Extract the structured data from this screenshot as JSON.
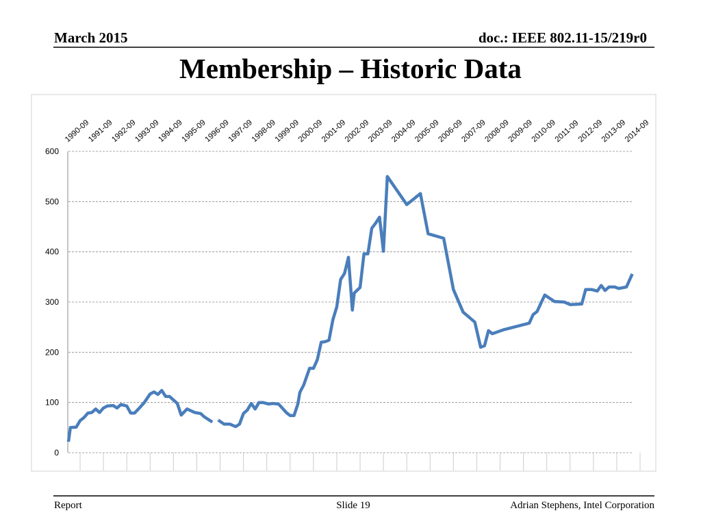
{
  "header": {
    "date": "March 2015",
    "doc": "doc.: IEEE 802.11-15/219r0"
  },
  "footer": {
    "left": "Report",
    "center": "Slide 19",
    "right": "Adrian Stephens, Intel Corporation"
  },
  "chart_data": {
    "type": "line",
    "title": "Membership – Historic Data",
    "x": [
      "1990-03",
      "1990-04",
      "1990-07",
      "1990-09",
      "1990-11",
      "1991-01",
      "1991-03",
      "1991-05",
      "1991-07",
      "1991-09",
      "1991-11",
      "1992-02",
      "1992-04",
      "1992-06",
      "1992-09",
      "1992-11",
      "1993-01",
      "1993-03",
      "1993-06",
      "1993-09",
      "1993-11",
      "1994-01",
      "1994-03",
      "1994-05",
      "1994-07",
      "1994-11",
      "1995-01",
      "1995-04",
      "1995-08",
      "1995-11",
      "1996-01",
      "1996-05",
      "1996-06",
      "1996-08",
      "1996-11",
      "1997-02",
      "1997-05",
      "1997-07",
      "1997-09",
      "1997-11",
      "1998-01",
      "1998-03",
      "1998-05",
      "1998-07",
      "1998-10",
      "1998-12",
      "1999-03",
      "1999-04",
      "1999-07",
      "1999-09",
      "1999-11",
      "2000-01",
      "2000-02",
      "2000-04",
      "2000-07",
      "2000-09",
      "2000-11",
      "2001-01",
      "2001-03",
      "2001-05",
      "2001-07",
      "2001-09",
      "2001-11",
      "2002-01",
      "2002-03",
      "2002-05",
      "2002-06",
      "2002-09",
      "2002-11",
      "2003-01",
      "2003-03",
      "2003-05",
      "2003-07",
      "2003-09",
      "2003-11",
      "2004-09",
      "2005-04",
      "2005-08",
      "2006-04",
      "2006-09",
      "2007-02",
      "2007-08",
      "2007-11",
      "2008-01",
      "2008-03",
      "2008-05",
      "2008-11",
      "2009-12",
      "2010-02",
      "2010-04",
      "2010-08",
      "2011-01",
      "2011-06",
      "2011-09",
      "2012-03",
      "2012-05",
      "2012-08",
      "2012-11",
      "2013-01",
      "2013-03",
      "2013-05",
      "2013-08",
      "2013-10",
      "2014-02",
      "2014-05"
    ],
    "series": [
      {
        "name": "Membership",
        "color": "#4a7ebb",
        "values": [
          22,
          50,
          51,
          64,
          70,
          79,
          80,
          87,
          80,
          89,
          93,
          94,
          89,
          96,
          93,
          79,
          79,
          87,
          100,
          117,
          121,
          116,
          124,
          112,
          112,
          98,
          75,
          87,
          80,
          78,
          71,
          61,
          null,
          65,
          57,
          57,
          52,
          57,
          78,
          85,
          98,
          87,
          100,
          100,
          97,
          98,
          97,
          93,
          80,
          74,
          74,
          97,
          120,
          135,
          168,
          168,
          185,
          220,
          221,
          224,
          265,
          290,
          345,
          357,
          389,
          284,
          318,
          329,
          396,
          396,
          447,
          457,
          469,
          401,
          550,
          494,
          516,
          436,
          427,
          325,
          280,
          260,
          210,
          213,
          243,
          237,
          245,
          258,
          275,
          281,
          314,
          301,
          300,
          295,
          296,
          325,
          325,
          322,
          333,
          323,
          330,
          330,
          327,
          330,
          356
        ]
      }
    ],
    "xlim": [
      "1990-03",
      "2014-09"
    ],
    "xticks": [
      "1990-09",
      "1991-09",
      "1992-09",
      "1993-09",
      "1994-09",
      "1995-09",
      "1996-09",
      "1997-09",
      "1998-09",
      "1999-09",
      "2000-09",
      "2001-09",
      "2002-09",
      "2003-09",
      "2004-09",
      "2005-09",
      "2006-09",
      "2007-09",
      "2008-09",
      "2009-09",
      "2010-09",
      "2011-09",
      "2012-09",
      "2013-09",
      "2014-09"
    ],
    "ylim": [
      0,
      600
    ],
    "yticks": [
      0,
      100,
      200,
      300,
      400,
      500,
      600
    ],
    "grid": true
  }
}
